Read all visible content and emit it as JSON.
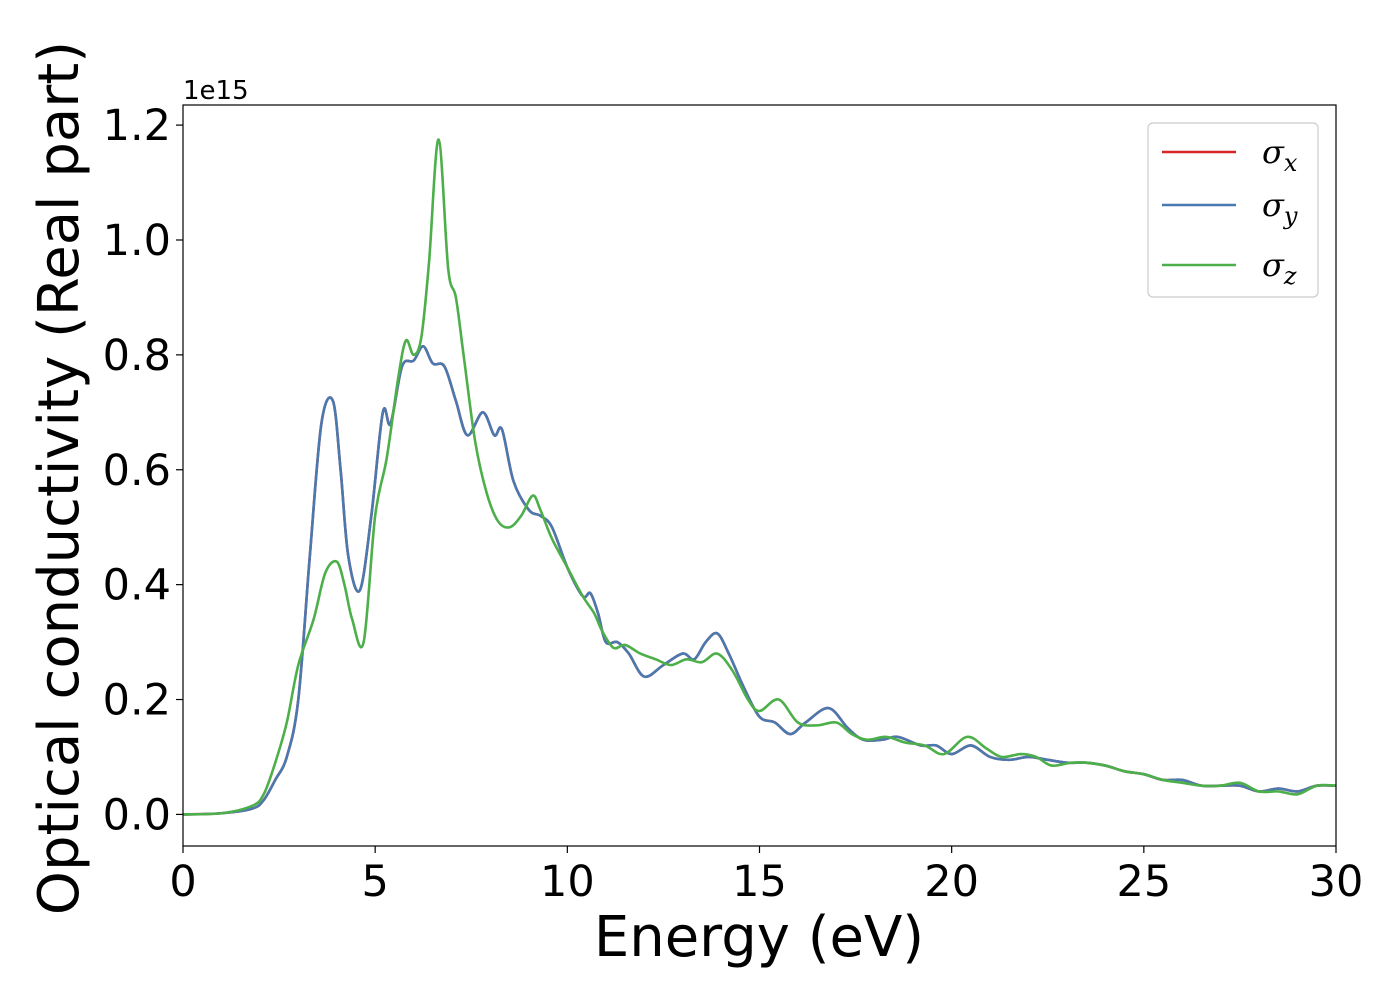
{
  "chart_data": {
    "type": "line",
    "xlabel": "Energy (eV)",
    "ylabel": "Optical conductivity (Real part)",
    "y_offset_label": "1e15",
    "xlim": [
      0,
      30
    ],
    "ylim": [
      -0.055,
      1.235
    ],
    "y_scale_factor": 1000000000000000.0,
    "x_ticks": [
      0,
      5,
      10,
      15,
      20,
      25,
      30
    ],
    "x_tick_labels": [
      "0",
      "5",
      "10",
      "15",
      "20",
      "25",
      "30"
    ],
    "y_ticks": [
      0.0,
      0.2,
      0.4,
      0.6,
      0.8,
      1.0,
      1.2
    ],
    "y_tick_labels": [
      "0.0",
      "0.2",
      "0.4",
      "0.6",
      "0.8",
      "1.0",
      "1.2"
    ],
    "grid": false,
    "legend_position": "top-right",
    "series": [
      {
        "name": "σx",
        "legend_base": "σ",
        "legend_sub": "x",
        "color": "#d62728",
        "x": [
          0,
          1,
          1.8,
          2.1,
          2.4,
          2.7,
          3.0,
          3.3,
          3.6,
          3.9,
          4.1,
          4.3,
          4.6,
          4.9,
          5.2,
          5.4,
          5.7,
          6.0,
          6.25,
          6.5,
          6.8,
          7.1,
          7.4,
          7.8,
          8.1,
          8.3,
          8.6,
          9.0,
          9.3,
          9.6,
          10.0,
          10.4,
          10.6,
          10.8,
          11.0,
          11.3,
          11.6,
          12.0,
          12.5,
          13.0,
          13.3,
          13.6,
          13.9,
          14.2,
          14.6,
          15.0,
          15.4,
          15.8,
          16.2,
          16.8,
          17.3,
          17.7,
          18.2,
          18.6,
          19.2,
          19.6,
          20.0,
          20.5,
          21.0,
          21.5,
          22.0,
          22.5,
          23.0,
          23.5,
          24.0,
          24.5,
          25.0,
          25.5,
          26.0,
          26.5,
          27.0,
          27.5,
          28.0,
          28.5,
          29.0,
          29.5,
          30.0
        ],
        "values": [
          0.0,
          0.002,
          0.01,
          0.025,
          0.06,
          0.1,
          0.2,
          0.45,
          0.68,
          0.72,
          0.6,
          0.45,
          0.39,
          0.52,
          0.7,
          0.68,
          0.78,
          0.79,
          0.815,
          0.785,
          0.78,
          0.72,
          0.66,
          0.7,
          0.66,
          0.67,
          0.58,
          0.53,
          0.52,
          0.5,
          0.43,
          0.38,
          0.385,
          0.35,
          0.3,
          0.3,
          0.28,
          0.24,
          0.26,
          0.28,
          0.27,
          0.3,
          0.315,
          0.28,
          0.22,
          0.17,
          0.16,
          0.14,
          0.16,
          0.185,
          0.15,
          0.13,
          0.13,
          0.135,
          0.12,
          0.12,
          0.105,
          0.12,
          0.1,
          0.095,
          0.1,
          0.095,
          0.09,
          0.09,
          0.085,
          0.075,
          0.07,
          0.06,
          0.06,
          0.05,
          0.05,
          0.05,
          0.04,
          0.045,
          0.04,
          0.05,
          0.05
        ]
      },
      {
        "name": "σy",
        "legend_base": "σ",
        "legend_sub": "y",
        "color": "#4a79b0",
        "x": [
          0,
          1,
          1.8,
          2.1,
          2.4,
          2.7,
          3.0,
          3.3,
          3.6,
          3.9,
          4.1,
          4.3,
          4.6,
          4.9,
          5.2,
          5.4,
          5.7,
          6.0,
          6.25,
          6.5,
          6.8,
          7.1,
          7.4,
          7.8,
          8.1,
          8.3,
          8.6,
          9.0,
          9.3,
          9.6,
          10.0,
          10.4,
          10.6,
          10.8,
          11.0,
          11.3,
          11.6,
          12.0,
          12.5,
          13.0,
          13.3,
          13.6,
          13.9,
          14.2,
          14.6,
          15.0,
          15.4,
          15.8,
          16.2,
          16.8,
          17.3,
          17.7,
          18.2,
          18.6,
          19.2,
          19.6,
          20.0,
          20.5,
          21.0,
          21.5,
          22.0,
          22.5,
          23.0,
          23.5,
          24.0,
          24.5,
          25.0,
          25.5,
          26.0,
          26.5,
          27.0,
          27.5,
          28.0,
          28.5,
          29.0,
          29.5,
          30.0
        ],
        "values": [
          0.0,
          0.002,
          0.01,
          0.025,
          0.06,
          0.1,
          0.2,
          0.45,
          0.68,
          0.72,
          0.6,
          0.45,
          0.39,
          0.52,
          0.7,
          0.68,
          0.78,
          0.79,
          0.815,
          0.785,
          0.78,
          0.72,
          0.66,
          0.7,
          0.66,
          0.67,
          0.58,
          0.53,
          0.52,
          0.5,
          0.43,
          0.38,
          0.385,
          0.35,
          0.3,
          0.3,
          0.28,
          0.24,
          0.26,
          0.28,
          0.27,
          0.3,
          0.315,
          0.28,
          0.22,
          0.17,
          0.16,
          0.14,
          0.16,
          0.185,
          0.15,
          0.13,
          0.13,
          0.135,
          0.12,
          0.12,
          0.105,
          0.12,
          0.1,
          0.095,
          0.1,
          0.095,
          0.09,
          0.09,
          0.085,
          0.075,
          0.07,
          0.06,
          0.06,
          0.05,
          0.05,
          0.05,
          0.04,
          0.045,
          0.04,
          0.05,
          0.05
        ]
      },
      {
        "name": "σz",
        "legend_base": "σ",
        "legend_sub": "z",
        "color": "#4daf4a",
        "x": [
          0,
          1,
          1.8,
          2.1,
          2.4,
          2.7,
          3.0,
          3.4,
          3.7,
          4.0,
          4.2,
          4.4,
          4.7,
          5.0,
          5.3,
          5.6,
          5.8,
          6.0,
          6.2,
          6.4,
          6.65,
          6.9,
          7.1,
          7.3,
          7.6,
          7.9,
          8.2,
          8.5,
          8.8,
          9.1,
          9.3,
          9.6,
          10.0,
          10.4,
          10.7,
          10.9,
          11.2,
          11.5,
          11.9,
          12.3,
          12.7,
          13.1,
          13.5,
          13.9,
          14.3,
          14.7,
          15.0,
          15.5,
          16.0,
          16.5,
          17.0,
          17.4,
          17.8,
          18.3,
          18.8,
          19.3,
          19.8,
          20.4,
          20.9,
          21.3,
          21.8,
          22.2,
          22.6,
          23.1,
          23.5,
          24.0,
          24.5,
          25.0,
          25.5,
          26.0,
          26.5,
          27.0,
          27.5,
          28.0,
          28.5,
          29.0,
          29.5,
          30.0
        ],
        "values": [
          0.0,
          0.002,
          0.015,
          0.035,
          0.09,
          0.16,
          0.26,
          0.34,
          0.42,
          0.44,
          0.4,
          0.34,
          0.3,
          0.52,
          0.62,
          0.76,
          0.825,
          0.8,
          0.83,
          0.96,
          1.175,
          0.95,
          0.9,
          0.8,
          0.65,
          0.56,
          0.51,
          0.5,
          0.52,
          0.555,
          0.53,
          0.48,
          0.43,
          0.38,
          0.35,
          0.32,
          0.29,
          0.295,
          0.28,
          0.27,
          0.26,
          0.27,
          0.265,
          0.28,
          0.25,
          0.2,
          0.18,
          0.2,
          0.16,
          0.155,
          0.16,
          0.14,
          0.13,
          0.135,
          0.125,
          0.12,
          0.105,
          0.135,
          0.115,
          0.1,
          0.105,
          0.1,
          0.085,
          0.09,
          0.09,
          0.085,
          0.075,
          0.07,
          0.06,
          0.055,
          0.05,
          0.05,
          0.055,
          0.04,
          0.04,
          0.035,
          0.05,
          0.05
        ]
      }
    ]
  }
}
